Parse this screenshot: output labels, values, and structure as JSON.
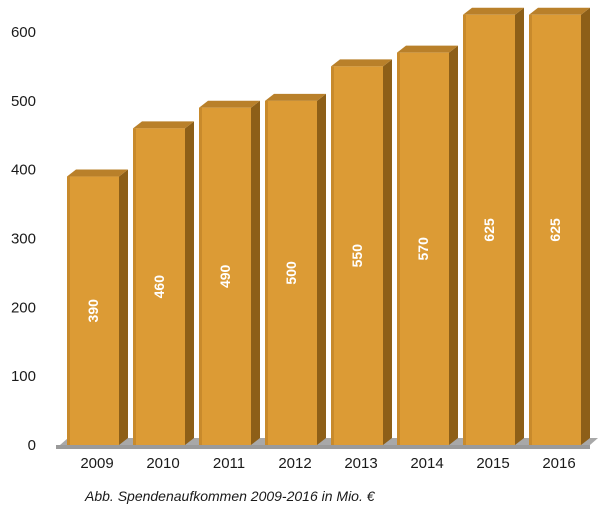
{
  "chart_data": {
    "type": "bar",
    "categories": [
      "2009",
      "2010",
      "2011",
      "2012",
      "2013",
      "2014",
      "2015",
      "2016"
    ],
    "values": [
      390,
      460,
      490,
      500,
      550,
      570,
      625,
      625
    ],
    "yticks": [
      "0",
      "100",
      "200",
      "300",
      "400",
      "500",
      "600"
    ],
    "ylim": [
      0,
      600
    ],
    "grid": false,
    "legend": "none",
    "style": "3d-bar",
    "colors": {
      "bar_front": "#dc9b35",
      "bar_top": "#b9802a",
      "bar_side": "#8d5f18",
      "floor": "#a8a8a8",
      "value_text": "#ffffff"
    }
  },
  "caption": "Abb. Spendenaufkommen 2009-2016 in Mio. €"
}
